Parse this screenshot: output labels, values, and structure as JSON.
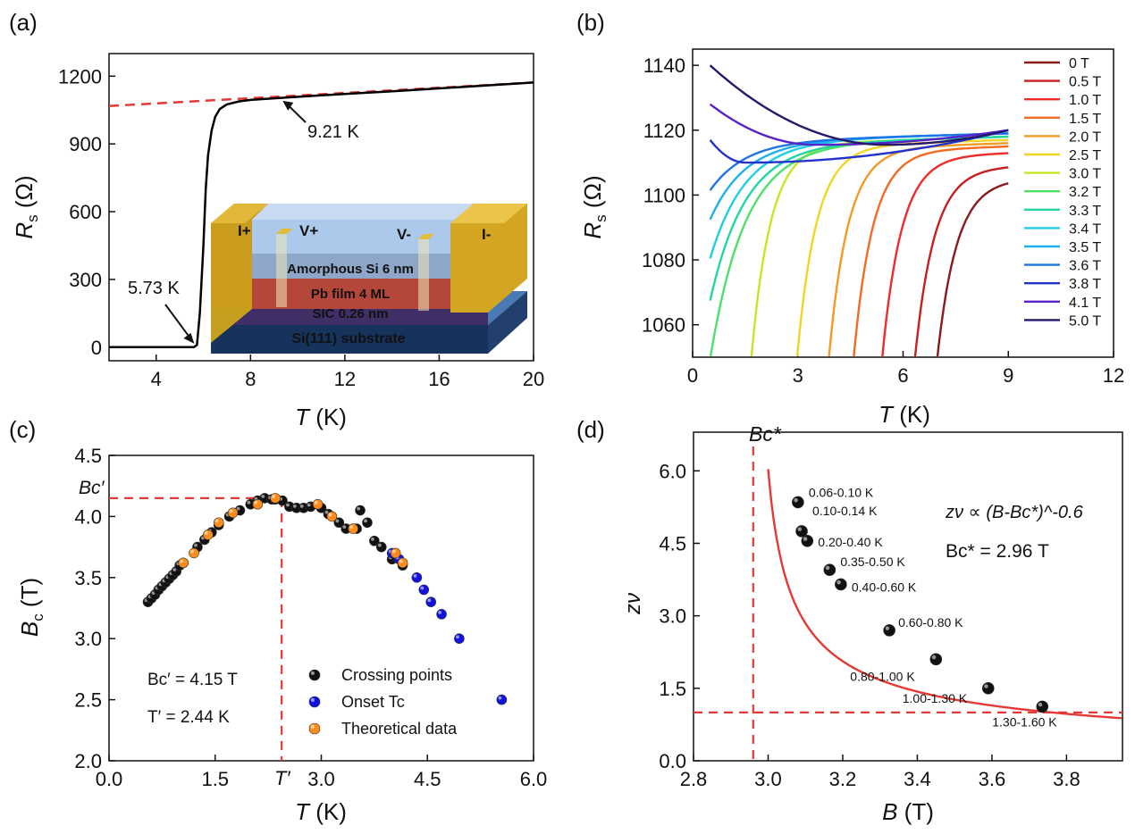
{
  "chart_data": [
    {
      "panel": "(a)",
      "type": "line",
      "xlabel": "T (K)",
      "ylabel": "Rs (Ω)",
      "xlim": [
        2,
        20
      ],
      "ylim": [
        -60,
        1300
      ],
      "xticks": [
        "4",
        "8",
        "12",
        "16",
        "20"
      ],
      "yticks": [
        "0",
        "300",
        "600",
        "900",
        "1200"
      ],
      "series": [
        {
          "x": [
            2,
            4,
            5,
            5.6,
            5.73,
            5.85,
            6.0,
            6.1,
            6.2,
            6.35,
            6.5,
            6.7,
            7.0,
            7.5,
            8.0,
            9.21,
            11,
            14,
            17,
            20
          ],
          "y": [
            0,
            0,
            0,
            0,
            10,
            150,
            450,
            700,
            850,
            960,
            1020,
            1055,
            1075,
            1088,
            1095,
            1103,
            1115,
            1133,
            1152,
            1172
          ],
          "color": "#000000"
        }
      ],
      "fit_line": {
        "x": [
          2,
          20
        ],
        "y": [
          1068,
          1172
        ],
        "color": "#e53935"
      },
      "annotations": [
        {
          "text": "9.21 K",
          "x": 9.21,
          "y": 1103
        },
        {
          "text": "5.73 K",
          "x": 5.73,
          "y": 0
        }
      ],
      "inset": {
        "labels": {
          "i_plus": "I+",
          "v_plus": "V+",
          "v_minus": "V-",
          "i_minus": "I-"
        },
        "layers": [
          "Amorphous Si 6 nm",
          "Pb film 4 ML",
          "SIC  0.26 nm",
          "Si(111) substrate"
        ]
      }
    },
    {
      "panel": "(b)",
      "type": "line",
      "xlabel": "T (K)",
      "ylabel": "Rs (Ω)",
      "xlim": [
        0,
        12
      ],
      "ylim": [
        1050,
        1145
      ],
      "xticks": [
        "0",
        "3",
        "6",
        "9",
        "12"
      ],
      "yticks": [
        "1060",
        "1080",
        "1100",
        "1120",
        "1140"
      ],
      "series": [
        {
          "name": "0 T",
          "color": "#8b1a1a",
          "Tc": 6.8,
          "Rend": 1105,
          "Rmin": 1105,
          "Tmin": 9,
          "Rstart": 1105
        },
        {
          "name": "0.5 T",
          "color": "#c81e1e",
          "Tc": 6.2,
          "Rend": 1109,
          "Rmin": 1109,
          "Tmin": 9,
          "Rstart": 1109
        },
        {
          "name": "1.0 T",
          "color": "#ef2b2b",
          "Tc": 5.3,
          "Rend": 1113,
          "Rmin": 1113,
          "Tmin": 9,
          "Rstart": 1113
        },
        {
          "name": "1.5 T",
          "color": "#f46a22",
          "Tc": 4.5,
          "Rend": 1115,
          "Rmin": 1115,
          "Tmin": 9,
          "Rstart": 1115
        },
        {
          "name": "2.0 T",
          "color": "#f39a22",
          "Tc": 3.8,
          "Rend": 1116,
          "Rmin": 1116,
          "Tmin": 9,
          "Rstart": 1116
        },
        {
          "name": "2.5 T",
          "color": "#f2d424",
          "Tc": 2.9,
          "Rend": 1117,
          "Rmin": 1117,
          "Tmin": 9,
          "Rstart": 1117
        },
        {
          "name": "3.0 T",
          "color": "#c5e625",
          "Tc": 1.6,
          "Rend": 1118,
          "Rmin": 1118,
          "Tmin": 9,
          "Rstart": 1118
        },
        {
          "name": "3.2 T",
          "color": "#4ee06a",
          "Tc": 0.5,
          "Rend": 1118,
          "Rmin": 1052,
          "Tmin": 0.5,
          "Rstart": 1052
        },
        {
          "name": "3.3 T",
          "color": "#22d6a2",
          "Tc": 0,
          "Rend": 1118,
          "Rmin": 1070,
          "Tmin": 0.5,
          "Rstart": 1070
        },
        {
          "name": "3.4 T",
          "color": "#22cde6",
          "Tc": 0,
          "Rend": 1119,
          "Rmin": 1083,
          "Tmin": 0.5,
          "Rstart": 1083
        },
        {
          "name": "3.5 T",
          "color": "#1fb0ef",
          "Tc": 0,
          "Rend": 1119,
          "Rmin": 1093,
          "Tmin": 0.7,
          "Rstart": 1095
        },
        {
          "name": "3.6 T",
          "color": "#1f74e8",
          "Tc": 0,
          "Rend": 1119,
          "Rmin": 1100,
          "Tmin": 1.1,
          "Rstart": 1104
        },
        {
          "name": "3.8 T",
          "color": "#2233cc",
          "Tc": 0,
          "Rend": 1120,
          "Rmin": 1110,
          "Tmin": 1.5,
          "Rstart": 1117
        },
        {
          "name": "4.1 T",
          "color": "#5523c9",
          "Tc": 0,
          "Rend": 1120,
          "Rmin": 1115.5,
          "Tmin": 3.5,
          "Rstart": 1128
        },
        {
          "name": "5.0 T",
          "color": "#241a6b",
          "Tc": 0,
          "Rend": 1120,
          "Rmin": 1115.5,
          "Tmin": 5.5,
          "Rstart": 1140
        }
      ]
    },
    {
      "panel": "(c)",
      "type": "scatter",
      "xlabel": "T (K)",
      "ylabel": "Bc (T)",
      "xlim": [
        0,
        6
      ],
      "ylim": [
        2,
        4.5
      ],
      "xticks": [
        "0.0",
        "1.5",
        "3.0",
        "4.5",
        "6.0"
      ],
      "yticks": [
        "2.0",
        "2.5",
        "3.0",
        "3.5",
        "4.0",
        "4.5"
      ],
      "reference": {
        "Bc": 4.15,
        "T": 2.44
      },
      "annotations": {
        "bc_prime_axis": "Bc′",
        "t_prime_axis": "T′",
        "bc_value": "Bc′ = 4.15 T",
        "t_value": "T′ = 2.44 K"
      },
      "series": [
        {
          "name": "Crossing points",
          "color": "#111111",
          "x": [
            0.55,
            0.6,
            0.65,
            0.7,
            0.75,
            0.8,
            0.85,
            0.9,
            0.95,
            1.0,
            1.05,
            1.25,
            1.35,
            1.45,
            1.55,
            1.7,
            1.85,
            2.0,
            2.1,
            2.2,
            2.3,
            2.35,
            2.45,
            2.55,
            2.65,
            2.75,
            2.85,
            3.0,
            3.1,
            3.25,
            3.35,
            3.5,
            3.55,
            3.65,
            3.75,
            3.85,
            4.0,
            4.15
          ],
          "y": [
            3.3,
            3.33,
            3.36,
            3.4,
            3.43,
            3.46,
            3.49,
            3.52,
            3.55,
            3.6,
            3.62,
            3.75,
            3.81,
            3.87,
            3.93,
            4.0,
            4.05,
            4.1,
            4.13,
            4.15,
            4.14,
            4.14,
            4.13,
            4.08,
            4.07,
            4.07,
            4.08,
            4.07,
            4.02,
            3.95,
            3.9,
            3.9,
            4.05,
            3.95,
            3.8,
            3.75,
            3.65,
            3.6
          ]
        },
        {
          "name": "Onset Tc",
          "color": "#1212e0",
          "x": [
            4.0,
            4.1,
            4.35,
            4.45,
            4.55,
            4.7,
            4.95,
            5.55
          ],
          "y": [
            3.7,
            3.65,
            3.5,
            3.4,
            3.3,
            3.2,
            3.0,
            2.5
          ]
        },
        {
          "name": "Theoretical data",
          "color": "#ff8c1a",
          "x": [
            1.05,
            1.2,
            1.4,
            1.55,
            1.75,
            2.1,
            2.35,
            2.95,
            3.15,
            3.45,
            4.05,
            4.15
          ],
          "y": [
            3.62,
            3.7,
            3.85,
            3.95,
            4.03,
            4.1,
            4.15,
            4.1,
            4.0,
            3.9,
            3.7,
            3.62
          ]
        }
      ],
      "legend": [
        "Crossing points",
        "Onset Tc",
        "Theoretical data"
      ]
    },
    {
      "panel": "(d)",
      "type": "scatter",
      "xlabel": "B (T)",
      "ylabel": "zν",
      "xlim": [
        2.8,
        3.95
      ],
      "ylim": [
        0,
        6.8
      ],
      "xticks": [
        "2.8",
        "3.0",
        "3.2",
        "3.4",
        "3.6",
        "3.8"
      ],
      "yticks": [
        "0.0",
        "1.5",
        "3.0",
        "4.5",
        "6.0"
      ],
      "fit": {
        "formula": "zν ∝ (B-Bc*)^-0.6",
        "Bc_star": 2.96,
        "label": "Bc* = 2.96 T"
      },
      "hline": 1.0,
      "axis_annotation": "Bc*",
      "points": [
        {
          "x": 3.08,
          "y": 5.35,
          "label": "0.06-0.10 K"
        },
        {
          "x": 3.09,
          "y": 4.75,
          "label": "0.10-0.14 K"
        },
        {
          "x": 3.105,
          "y": 4.55,
          "label": "0.20-0.40 K"
        },
        {
          "x": 3.165,
          "y": 3.95,
          "label": "0.35-0.50 K"
        },
        {
          "x": 3.195,
          "y": 3.65,
          "label": "0.40-0.60 K"
        },
        {
          "x": 3.325,
          "y": 2.7,
          "label": "0.60-0.80 K"
        },
        {
          "x": 3.45,
          "y": 2.1,
          "label": "0.80-1.00 K"
        },
        {
          "x": 3.59,
          "y": 1.5,
          "label": "1.00-1.30 K"
        },
        {
          "x": 3.735,
          "y": 1.12,
          "label": "1.30-1.60 K"
        }
      ]
    }
  ]
}
